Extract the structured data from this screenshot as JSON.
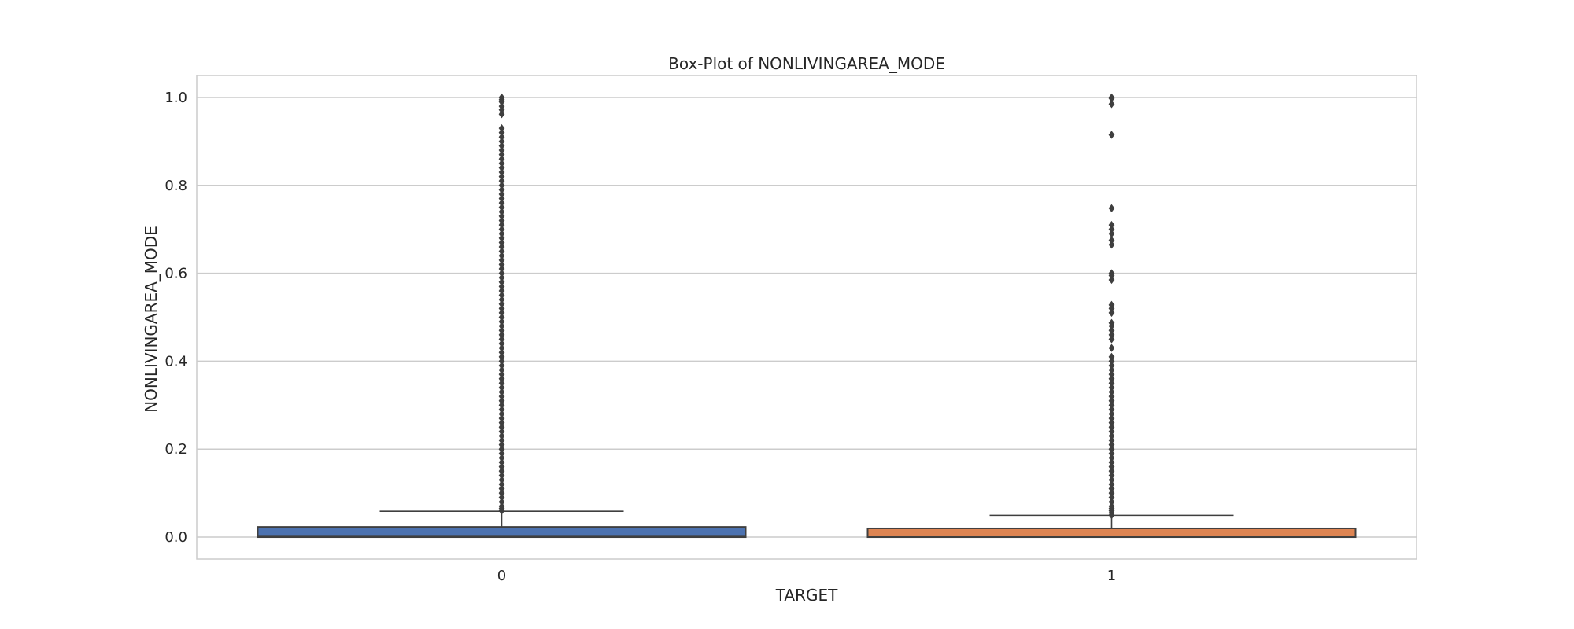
{
  "chart_data": {
    "type": "box",
    "title": "Box-Plot of NONLIVINGAREA_MODE",
    "xlabel": "TARGET",
    "ylabel": "NONLIVINGAREA_MODE",
    "ylim": [
      -0.05,
      1.05
    ],
    "yticks": [
      0.0,
      0.2,
      0.4,
      0.6,
      0.8,
      1.0
    ],
    "ytick_labels": [
      "0.0",
      "0.2",
      "0.4",
      "0.6",
      "0.8",
      "1.0"
    ],
    "grid": true,
    "categories": [
      "0",
      "1"
    ],
    "boxes": [
      {
        "category": "0",
        "color": "#4c72b0",
        "whisker_low": 0.0,
        "q1": 0.0,
        "median": 0.0011,
        "q3": 0.0231,
        "whisker_high": 0.0588,
        "outliers": [
          1.0,
          0.995,
          0.99,
          0.98,
          0.972,
          0.962,
          0.93,
          0.92,
          0.91,
          0.9,
          0.89,
          0.88,
          0.87,
          0.86,
          0.85,
          0.84,
          0.83,
          0.82,
          0.81,
          0.8,
          0.79,
          0.78,
          0.77,
          0.76,
          0.75,
          0.74,
          0.73,
          0.72,
          0.71,
          0.7,
          0.69,
          0.68,
          0.67,
          0.66,
          0.65,
          0.64,
          0.63,
          0.62,
          0.61,
          0.6,
          0.59,
          0.58,
          0.57,
          0.56,
          0.55,
          0.54,
          0.53,
          0.52,
          0.51,
          0.5,
          0.49,
          0.48,
          0.47,
          0.46,
          0.45,
          0.44,
          0.43,
          0.42,
          0.41,
          0.4,
          0.39,
          0.38,
          0.37,
          0.36,
          0.35,
          0.34,
          0.33,
          0.32,
          0.31,
          0.3,
          0.29,
          0.28,
          0.27,
          0.26,
          0.25,
          0.24,
          0.23,
          0.22,
          0.21,
          0.2,
          0.19,
          0.18,
          0.17,
          0.16,
          0.15,
          0.14,
          0.13,
          0.12,
          0.11,
          0.1,
          0.09,
          0.08,
          0.07,
          0.065,
          0.06
        ]
      },
      {
        "category": "1",
        "color": "#dd8452",
        "whisker_low": 0.0,
        "q1": 0.0,
        "median": 0.0,
        "q3": 0.0198,
        "whisker_high": 0.0495,
        "outliers": [
          1.0,
          0.998,
          0.985,
          0.915,
          0.748,
          0.71,
          0.7,
          0.69,
          0.675,
          0.665,
          0.6,
          0.595,
          0.585,
          0.528,
          0.52,
          0.51,
          0.487,
          0.48,
          0.47,
          0.46,
          0.45,
          0.43,
          0.41,
          0.4,
          0.39,
          0.38,
          0.37,
          0.36,
          0.35,
          0.34,
          0.33,
          0.32,
          0.31,
          0.3,
          0.29,
          0.28,
          0.27,
          0.26,
          0.25,
          0.24,
          0.23,
          0.22,
          0.21,
          0.2,
          0.19,
          0.18,
          0.17,
          0.16,
          0.15,
          0.14,
          0.13,
          0.12,
          0.11,
          0.1,
          0.09,
          0.08,
          0.07,
          0.065,
          0.06,
          0.055,
          0.05
        ]
      }
    ]
  }
}
